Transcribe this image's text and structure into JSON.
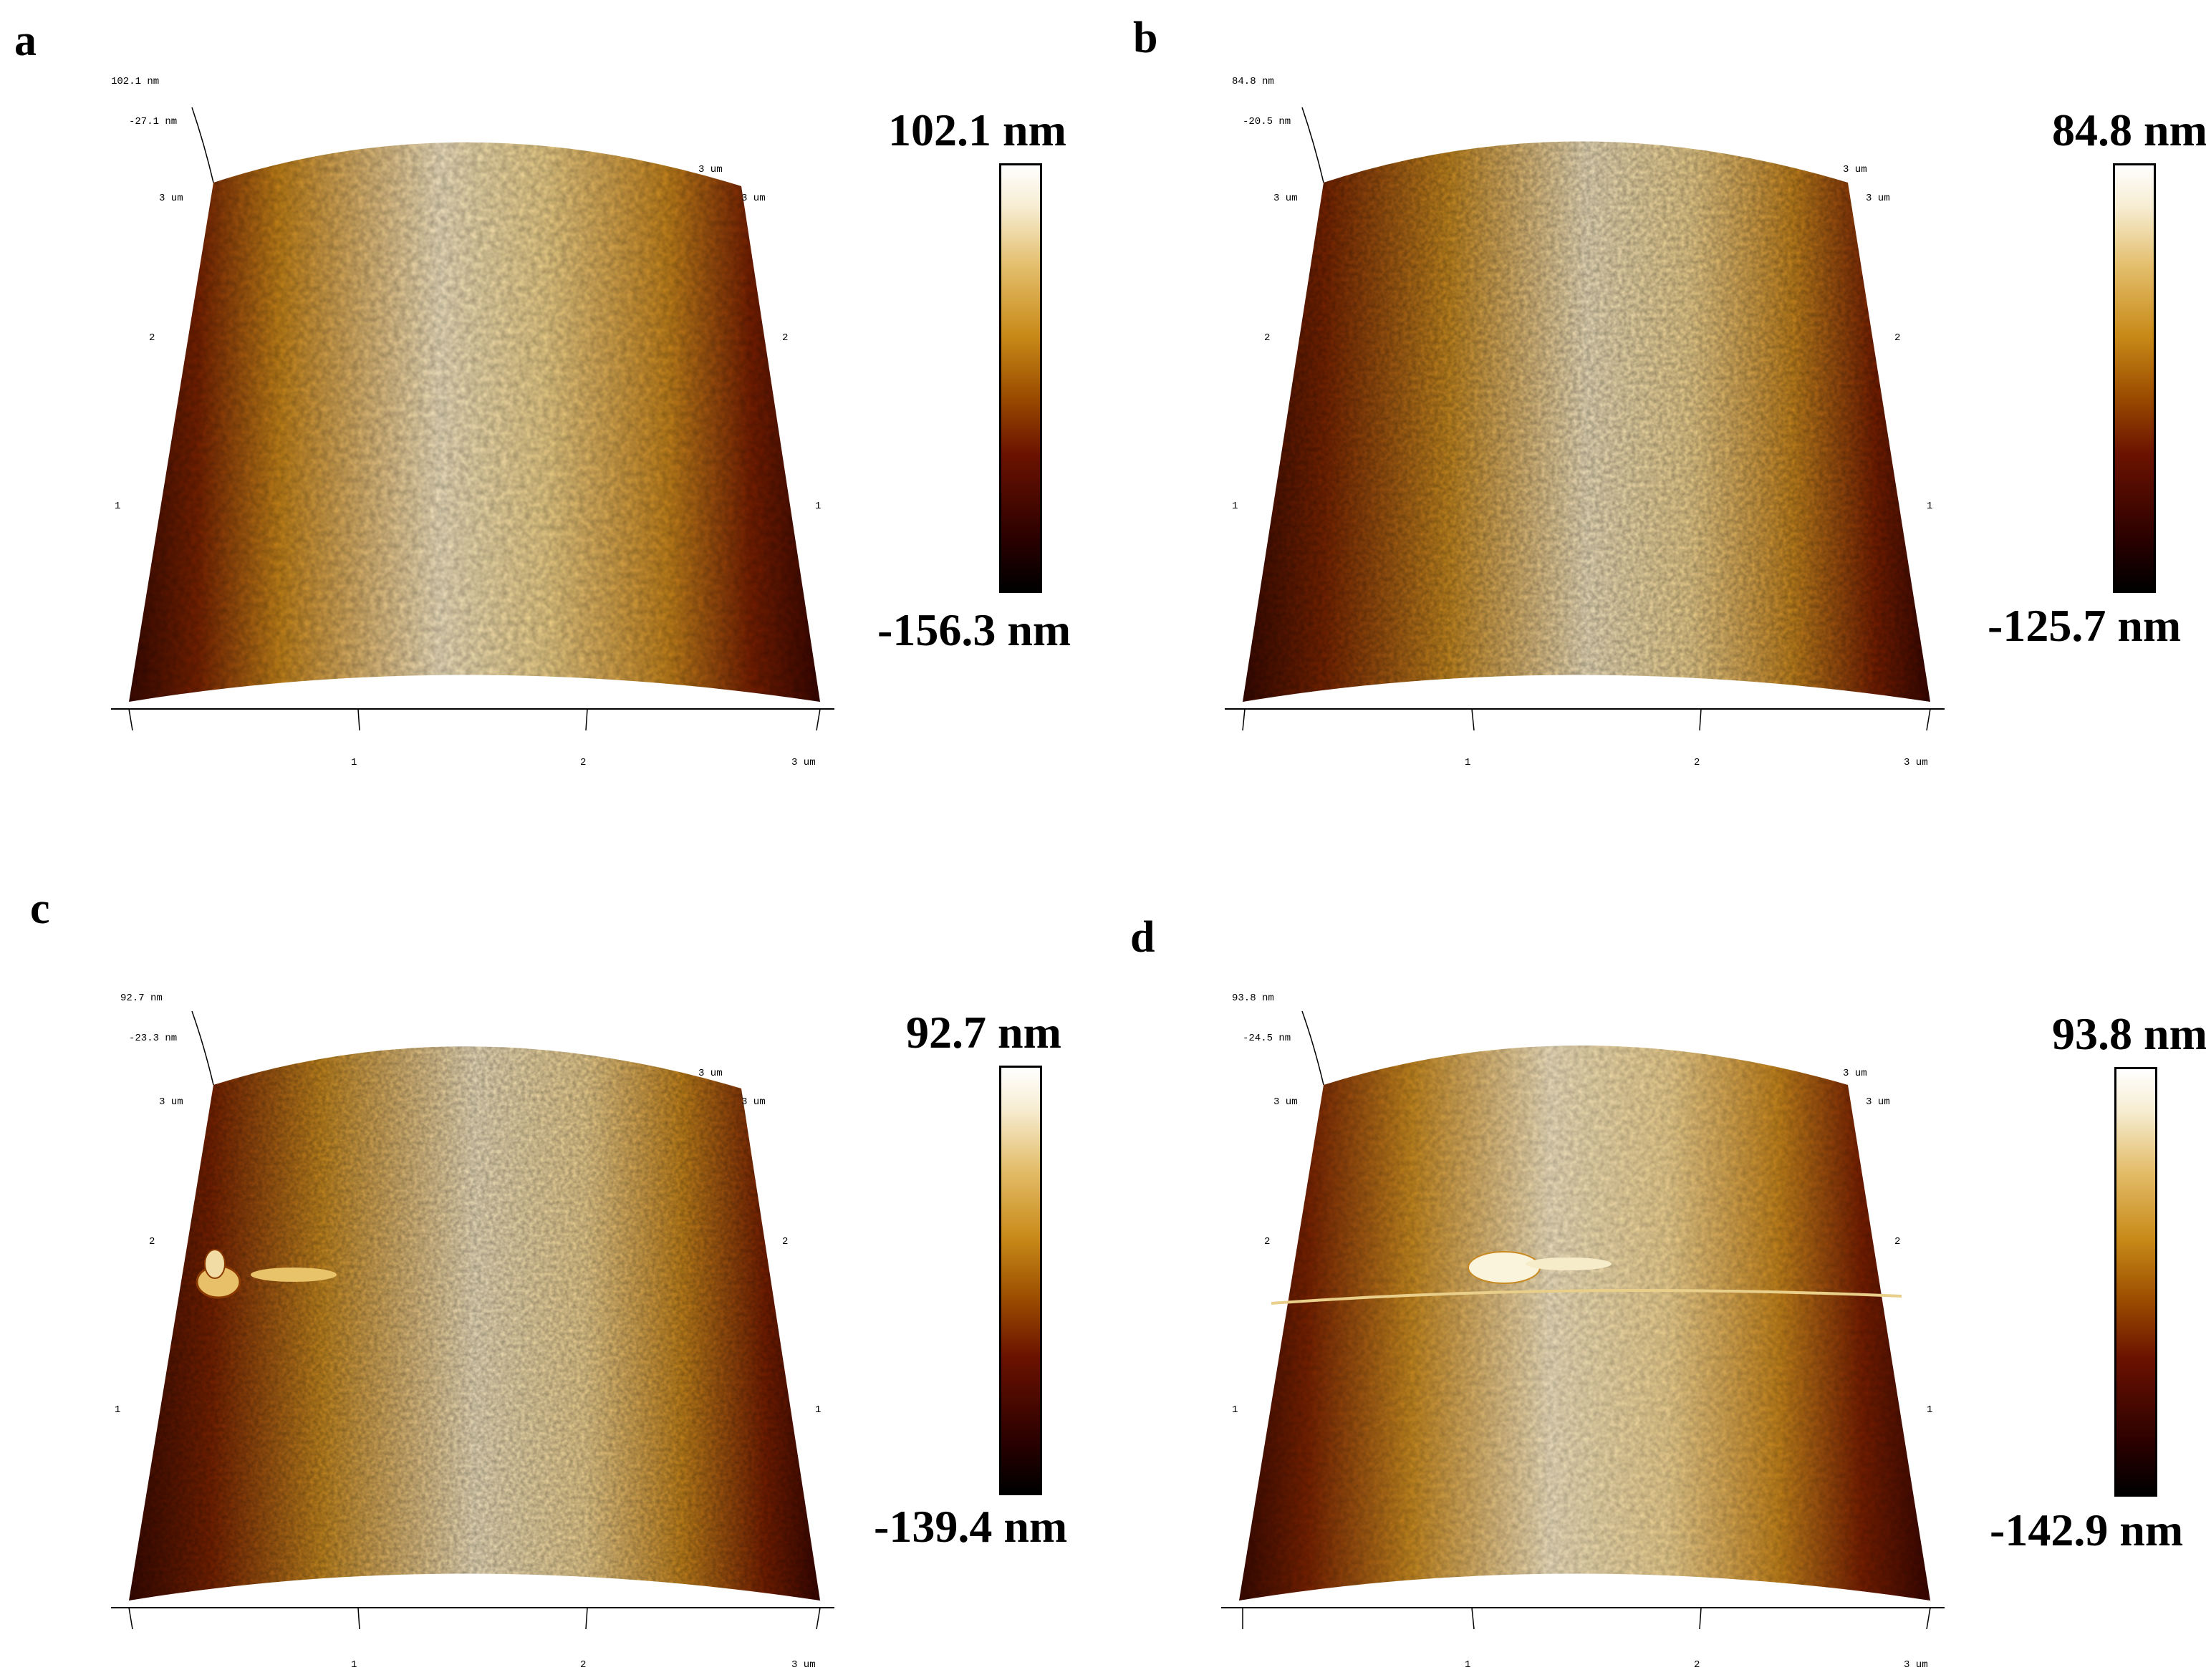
{
  "panels": [
    {
      "letter": "a",
      "max_label": "102.1 nm",
      "min_label": "-156.3 nm",
      "z_top": "102.1 nm",
      "z_mid": "-27.1 nm",
      "y_ticks": [
        "3 um",
        "2",
        "1"
      ],
      "x_ticks": [
        "1",
        "2",
        "3 um"
      ],
      "back_right_label": "3 um",
      "right_ticks": [
        "3 um",
        "2",
        "1"
      ]
    },
    {
      "letter": "b",
      "max_label": "84.8 nm",
      "min_label": "-125.7 nm",
      "z_top": "84.8 nm",
      "z_mid": "-20.5 nm",
      "y_ticks": [
        "3 um",
        "2",
        "1"
      ],
      "x_ticks": [
        "1",
        "2",
        "3 um"
      ],
      "back_right_label": "3 um",
      "right_ticks": [
        "3 um",
        "2",
        "1"
      ]
    },
    {
      "letter": "c",
      "max_label": "92.7 nm",
      "min_label": "-139.4 nm",
      "z_top": "92.7 nm",
      "z_mid": "-23.3 nm",
      "y_ticks": [
        "3 um",
        "2",
        "1"
      ],
      "x_ticks": [
        "1",
        "2",
        "3 um"
      ],
      "back_right_label": "3 um",
      "right_ticks": [
        "3 um",
        "2",
        "1"
      ]
    },
    {
      "letter": "d",
      "max_label": "93.8 nm",
      "min_label": "-142.9 nm",
      "z_top": "93.8 nm",
      "z_mid": "-24.5 nm",
      "y_ticks": [
        "3 um",
        "2",
        "1"
      ],
      "x_ticks": [
        "1",
        "2",
        "3 um"
      ],
      "back_right_label": "3 um",
      "right_ticks": [
        "3 um",
        "2",
        "1"
      ]
    }
  ],
  "colors": {
    "colormap": [
      "#000000",
      "#6b1200",
      "#9c4e00",
      "#c88a18",
      "#e3bd6a",
      "#ffffff"
    ]
  }
}
